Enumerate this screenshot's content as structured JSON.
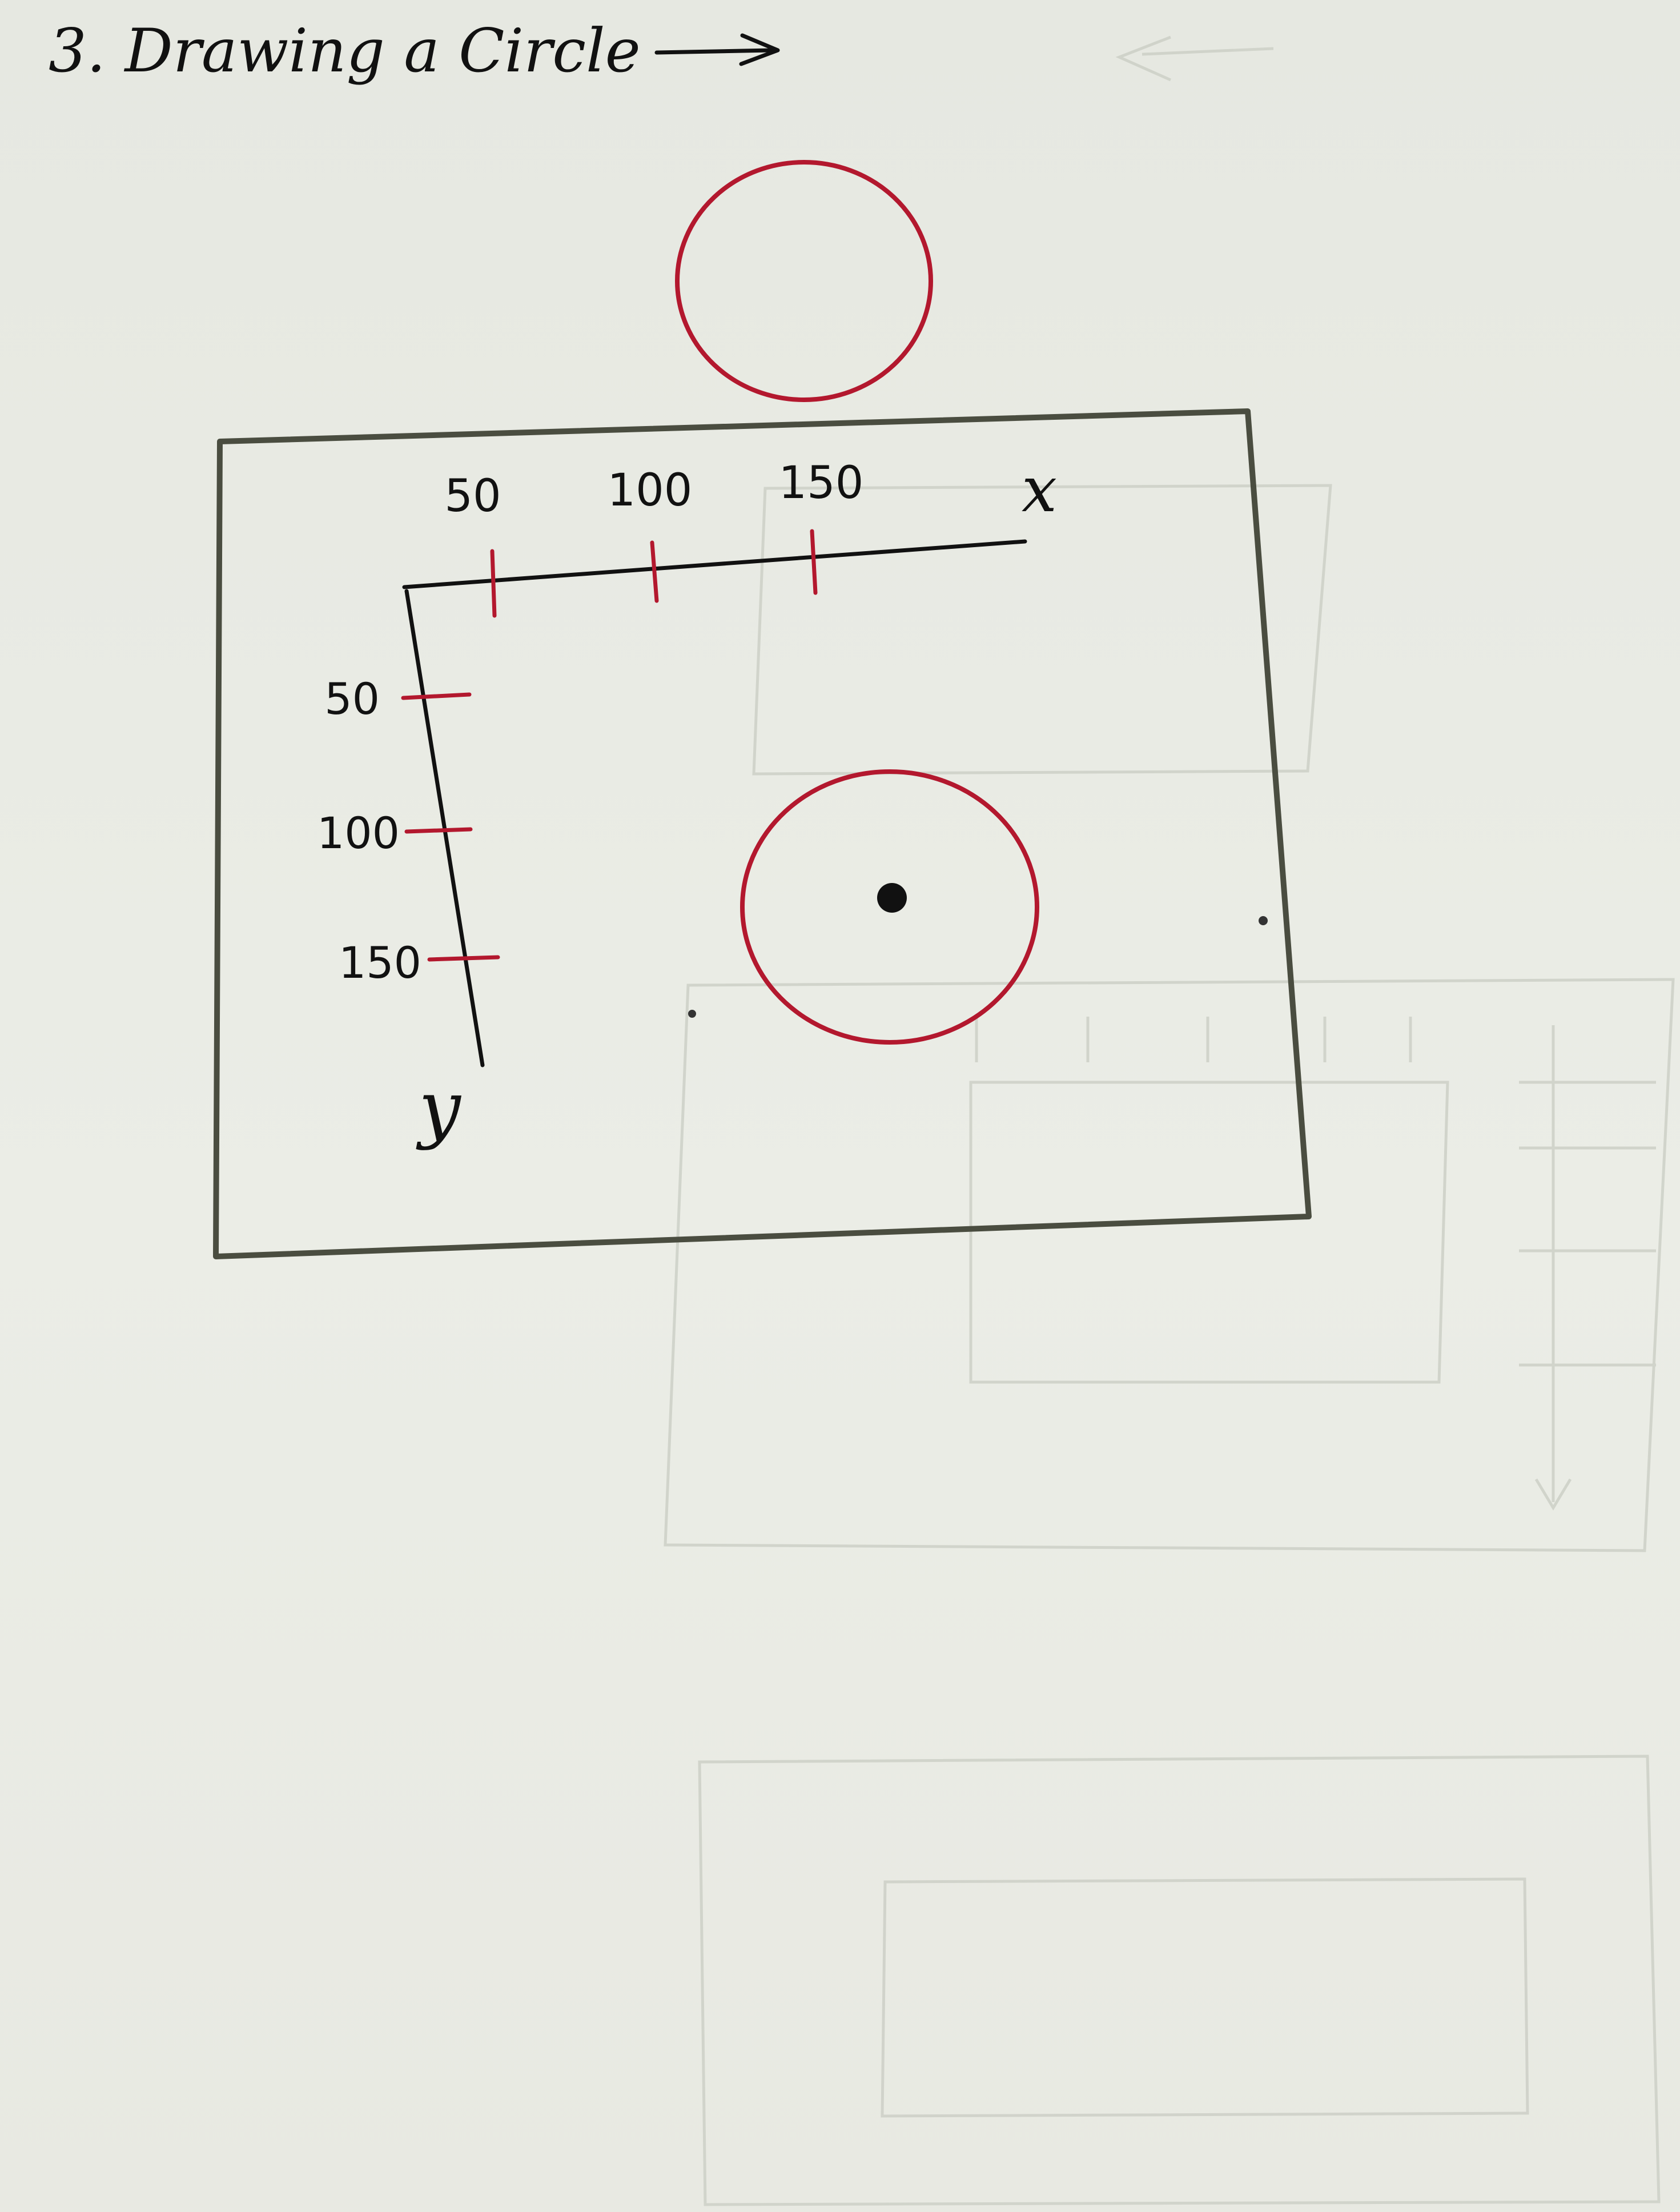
{
  "title": "3. Drawing a Circle",
  "diagram": {
    "x_axis": {
      "label": "x",
      "ticks": [
        "50",
        "100",
        "150"
      ]
    },
    "y_axis": {
      "label": "y",
      "ticks": [
        "50",
        "100",
        "150"
      ]
    }
  },
  "colors": {
    "ink": "#111111",
    "red_ink": "#b3182e",
    "frame": "#4a4d40",
    "paper": "#e9ebe4",
    "ghost": "#c9ccc3"
  }
}
